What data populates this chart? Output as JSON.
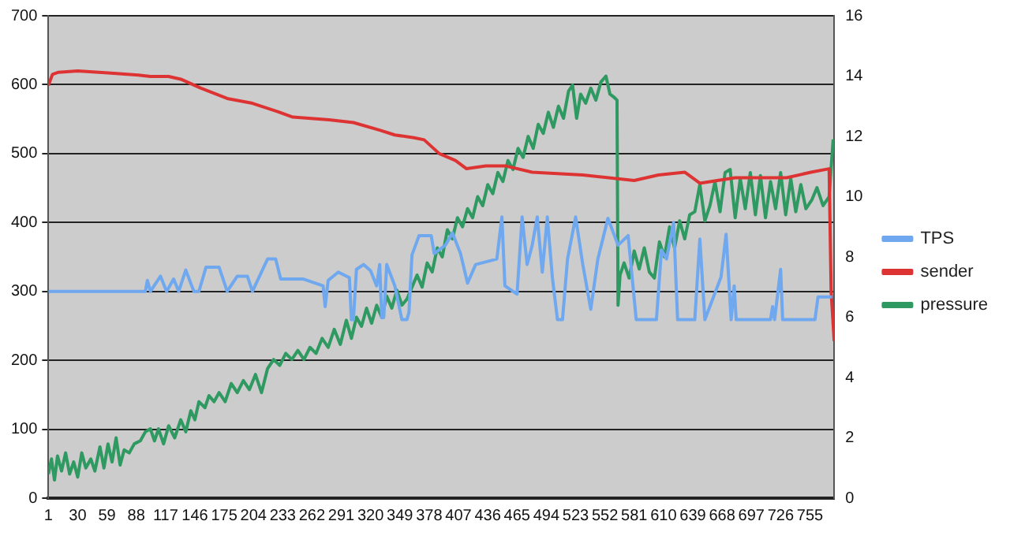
{
  "chart_data": {
    "type": "line",
    "xlim": [
      1,
      779
    ],
    "xticks": [
      1,
      30,
      59,
      88,
      117,
      146,
      175,
      204,
      233,
      262,
      291,
      320,
      349,
      378,
      407,
      436,
      465,
      494,
      523,
      552,
      581,
      610,
      639,
      668,
      697,
      726,
      755
    ],
    "ylim": [
      0,
      700
    ],
    "yticks": [
      0,
      100,
      200,
      300,
      400,
      500,
      600,
      700
    ],
    "y2lim": [
      0,
      16
    ],
    "y2ticks": [
      0,
      2,
      4,
      6,
      8,
      10,
      12,
      14,
      16
    ],
    "grid": "y",
    "legend": "right",
    "marker": "none",
    "line_style": "solid",
    "series": [
      {
        "name": "TPS",
        "color": "#6fa8ee",
        "x": [
          1,
          97,
          99,
          102,
          112,
          118,
          125,
          130,
          137,
          145,
          150,
          157,
          170,
          178,
          188,
          198,
          203,
          218,
          226,
          231,
          253,
          273,
          275,
          278,
          288,
          299,
          301,
          303,
          306,
          313,
          320,
          326,
          329,
          331,
          333,
          336,
          344,
          351,
          356,
          358,
          361,
          368,
          380,
          383,
          394,
          401,
          409,
          416,
          424,
          445,
          450,
          453,
          465,
          470,
          475,
          480,
          485,
          490,
          495,
          500,
          505,
          510,
          515,
          523,
          530,
          538,
          545,
          555,
          565,
          575,
          583,
          603,
          608,
          613,
          620,
          624,
          641,
          646,
          651,
          667,
          672,
          677,
          680,
          682,
          716,
          718,
          720,
          726,
          728,
          760,
          763,
          777
        ],
        "values": [
          300,
          300,
          316,
          300,
          322,
          300,
          318,
          300,
          331,
          300,
          300,
          335,
          335,
          300,
          322,
          322,
          300,
          347,
          347,
          318,
          318,
          308,
          278,
          316,
          328,
          320,
          259,
          259,
          332,
          339,
          330,
          308,
          339,
          262,
          262,
          339,
          308,
          259,
          259,
          270,
          353,
          381,
          381,
          355,
          367,
          385,
          355,
          312,
          339,
          347,
          408,
          308,
          296,
          408,
          339,
          367,
          408,
          328,
          408,
          320,
          259,
          259,
          347,
          408,
          340,
          274,
          347,
          406,
          367,
          381,
          259,
          259,
          360,
          347,
          400,
          259,
          259,
          376,
          259,
          321,
          383,
          259,
          308,
          259,
          259,
          278,
          259,
          332,
          259,
          259,
          292,
          292
        ]
      },
      {
        "name": "sender",
        "color": "#dd3333",
        "x": [
          1,
          5,
          11,
          30,
          60,
          90,
          102,
          120,
          132,
          152,
          178,
          203,
          228,
          243,
          279,
          303,
          329,
          344,
          363,
          373,
          388,
          404,
          415,
          434,
          454,
          480,
          530,
          581,
          605,
          631,
          646,
          681,
          732,
          756,
          774,
          776,
          779
        ],
        "values": [
          599,
          615,
          618,
          620,
          617,
          614,
          612,
          612,
          608,
          595,
          580,
          573,
          561,
          553,
          549,
          545,
          534,
          527,
          523,
          520,
          500,
          490,
          478,
          482,
          482,
          473,
          469,
          461,
          469,
          473,
          457,
          465,
          465,
          473,
          478,
          300,
          228
        ]
      },
      {
        "name": "pressure",
        "color": "#2e9960",
        "axis": "y2",
        "x": [
          1,
          4,
          7,
          10,
          14,
          18,
          22,
          26,
          30,
          34,
          38,
          43,
          47,
          52,
          56,
          60,
          64,
          68,
          72,
          76,
          81,
          86,
          92,
          97,
          102,
          106,
          110,
          115,
          120,
          126,
          132,
          137,
          142,
          146,
          150,
          156,
          160,
          165,
          170,
          176,
          182,
          188,
          194,
          200,
          206,
          212,
          218,
          224,
          230,
          236,
          242,
          248,
          254,
          260,
          266,
          272,
          278,
          284,
          290,
          296,
          301,
          306,
          311,
          316,
          321,
          326,
          331,
          336,
          341,
          346,
          351,
          356,
          361,
          366,
          371,
          376,
          381,
          386,
          391,
          396,
          401,
          406,
          411,
          416,
          421,
          426,
          431,
          436,
          441,
          446,
          451,
          456,
          461,
          466,
          471,
          476,
          481,
          486,
          491,
          496,
          501,
          506,
          511,
          516,
          520,
          524,
          528,
          533,
          538,
          543,
          548,
          553,
          557,
          561,
          564,
          565,
          567,
          571,
          576,
          581,
          586,
          591,
          596,
          601,
          606,
          611,
          616,
          621,
          626,
          631,
          636,
          641,
          646,
          651,
          656,
          661,
          666,
          671,
          676,
          681,
          686,
          691,
          696,
          701,
          706,
          711,
          716,
          721,
          726,
          731,
          736,
          741,
          746,
          751,
          757,
          762,
          768,
          774,
          778
        ],
        "values": [
          0.8,
          1.3,
          0.6,
          1.4,
          0.9,
          1.5,
          0.8,
          1.2,
          0.7,
          1.5,
          1.0,
          1.3,
          0.9,
          1.7,
          1.0,
          1.8,
          1.2,
          2.0,
          1.1,
          1.6,
          1.5,
          1.8,
          1.9,
          2.2,
          2.3,
          1.9,
          2.3,
          1.8,
          2.4,
          2.0,
          2.6,
          2.2,
          2.9,
          2.6,
          3.2,
          3.0,
          3.4,
          3.2,
          3.5,
          3.2,
          3.8,
          3.5,
          3.9,
          3.6,
          4.1,
          3.5,
          4.3,
          4.6,
          4.4,
          4.8,
          4.6,
          4.9,
          4.6,
          5.0,
          4.8,
          5.3,
          5.0,
          5.6,
          5.1,
          5.9,
          5.3,
          6.0,
          5.7,
          6.3,
          5.8,
          6.4,
          6.0,
          6.7,
          6.3,
          6.9,
          6.4,
          6.6,
          7.0,
          7.4,
          7.0,
          7.8,
          7.5,
          8.3,
          8.0,
          8.9,
          8.6,
          9.3,
          9.0,
          9.6,
          9.3,
          10.0,
          9.7,
          10.4,
          10.1,
          10.8,
          10.5,
          11.2,
          10.9,
          11.6,
          11.3,
          12.0,
          11.6,
          12.4,
          12.1,
          12.8,
          12.3,
          13.0,
          12.6,
          13.5,
          13.7,
          12.6,
          13.4,
          13.1,
          13.6,
          13.2,
          13.8,
          14.0,
          13.4,
          13.3,
          13.2,
          6.4,
          7.4,
          7.8,
          7.3,
          8.2,
          7.6,
          8.3,
          7.5,
          7.3,
          8.5,
          8.0,
          9.0,
          8.3,
          9.2,
          8.6,
          9.4,
          9.5,
          10.4,
          9.2,
          9.7,
          10.5,
          9.5,
          10.8,
          10.9,
          9.3,
          10.6,
          9.6,
          10.8,
          9.4,
          10.7,
          9.3,
          10.5,
          9.6,
          10.8,
          9.4,
          10.6,
          9.5,
          10.4,
          9.6,
          9.9,
          10.3,
          9.7,
          10.0,
          11.9
        ]
      }
    ]
  }
}
